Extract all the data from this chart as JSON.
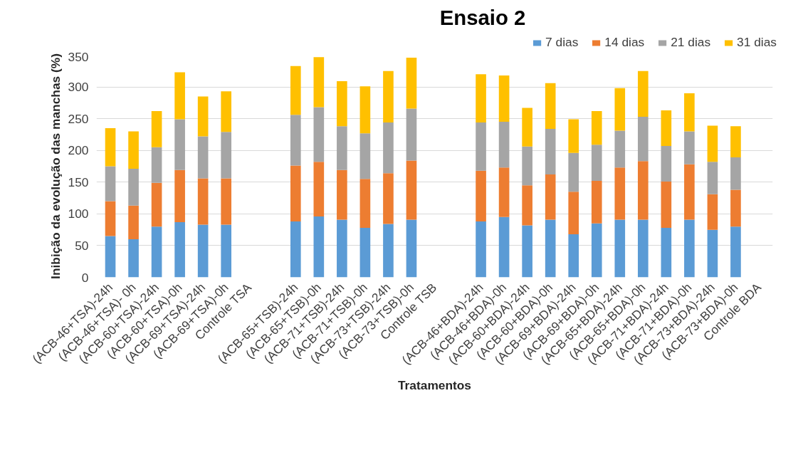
{
  "chart_data": {
    "type": "bar",
    "title": "Ensaio 2",
    "xlabel": "Tratamentos",
    "ylabel": "Inibição da evolução das manchas (%)",
    "categories": [
      "(ACB-46+TSA)-24h",
      "(ACB-46+TSA)- 0h",
      "(ACB-60+TSA)-24h",
      "(ACB-60+TSA)-0h",
      "(ACB-69+TSA)-24h",
      "(ACB-69+TSA)-0h",
      "Controle TSA",
      null,
      "(ACB-65+TSB)-24h",
      "(ACB-65+TSB)-0h",
      "(ACB-71+TSB)-24h",
      "(ACB-71+TSB)-0h",
      "(ACB-73+TSB)-24h",
      "(ACB-73+TSB)-0h",
      "Controle TSB",
      null,
      "(ACB-46+BDA)-24h",
      "(ACB-46+BDA)-0h",
      "(ACB-60+BDA)-24h",
      "(ACB-60+BDA)-0h",
      "(ACB-69+BDA)-24h",
      "(ACB-69+BDA)-0h",
      "(ACB-65+BDA)-24h",
      "(ACB-65+BDA)-0h",
      "(ACB-71+BDA)-24h",
      "(ACB-71+BDA)-0h",
      "(ACB-73+BDA)-24h",
      "(ACB-73+BDA)-0h",
      "Controle BDA"
    ],
    "stacked": true,
    "series": [
      {
        "name": "7 dias",
        "color": "#5b9bd5",
        "values": [
          65,
          60,
          80,
          87,
          83,
          83,
          null,
          null,
          88,
          96,
          91,
          78,
          84,
          91,
          null,
          null,
          88,
          95,
          82,
          91,
          68,
          85,
          91,
          91,
          78,
          91,
          75,
          80,
          null
        ]
      },
      {
        "name": "14 dias",
        "color": "#ed7d31",
        "values": [
          55,
          53,
          69,
          82,
          73,
          73,
          null,
          null,
          88,
          86,
          78,
          77,
          80,
          93,
          null,
          null,
          80,
          78,
          63,
          71,
          67,
          67,
          82,
          92,
          73,
          87,
          56,
          58,
          null
        ]
      },
      {
        "name": "21 dias",
        "color": "#a5a5a5",
        "values": [
          55,
          58,
          56,
          80,
          66,
          73,
          null,
          null,
          80,
          86,
          69,
          72,
          80,
          82,
          null,
          null,
          76,
          72,
          61,
          72,
          61,
          57,
          58,
          70,
          56,
          52,
          51,
          51,
          null
        ]
      },
      {
        "name": "31 dias",
        "color": "#ffc000",
        "values": [
          60,
          59,
          57,
          74,
          63,
          64,
          null,
          null,
          77,
          79,
          71,
          74,
          81,
          80,
          null,
          null,
          76,
          73,
          61,
          72,
          53,
          53,
          67,
          72,
          56,
          60,
          57,
          49,
          null
        ]
      }
    ],
    "ylim": [
      0,
      350
    ],
    "yticks": [
      0,
      50,
      100,
      150,
      200,
      250,
      300,
      350
    ],
    "grid": "y",
    "legend": "top right"
  }
}
